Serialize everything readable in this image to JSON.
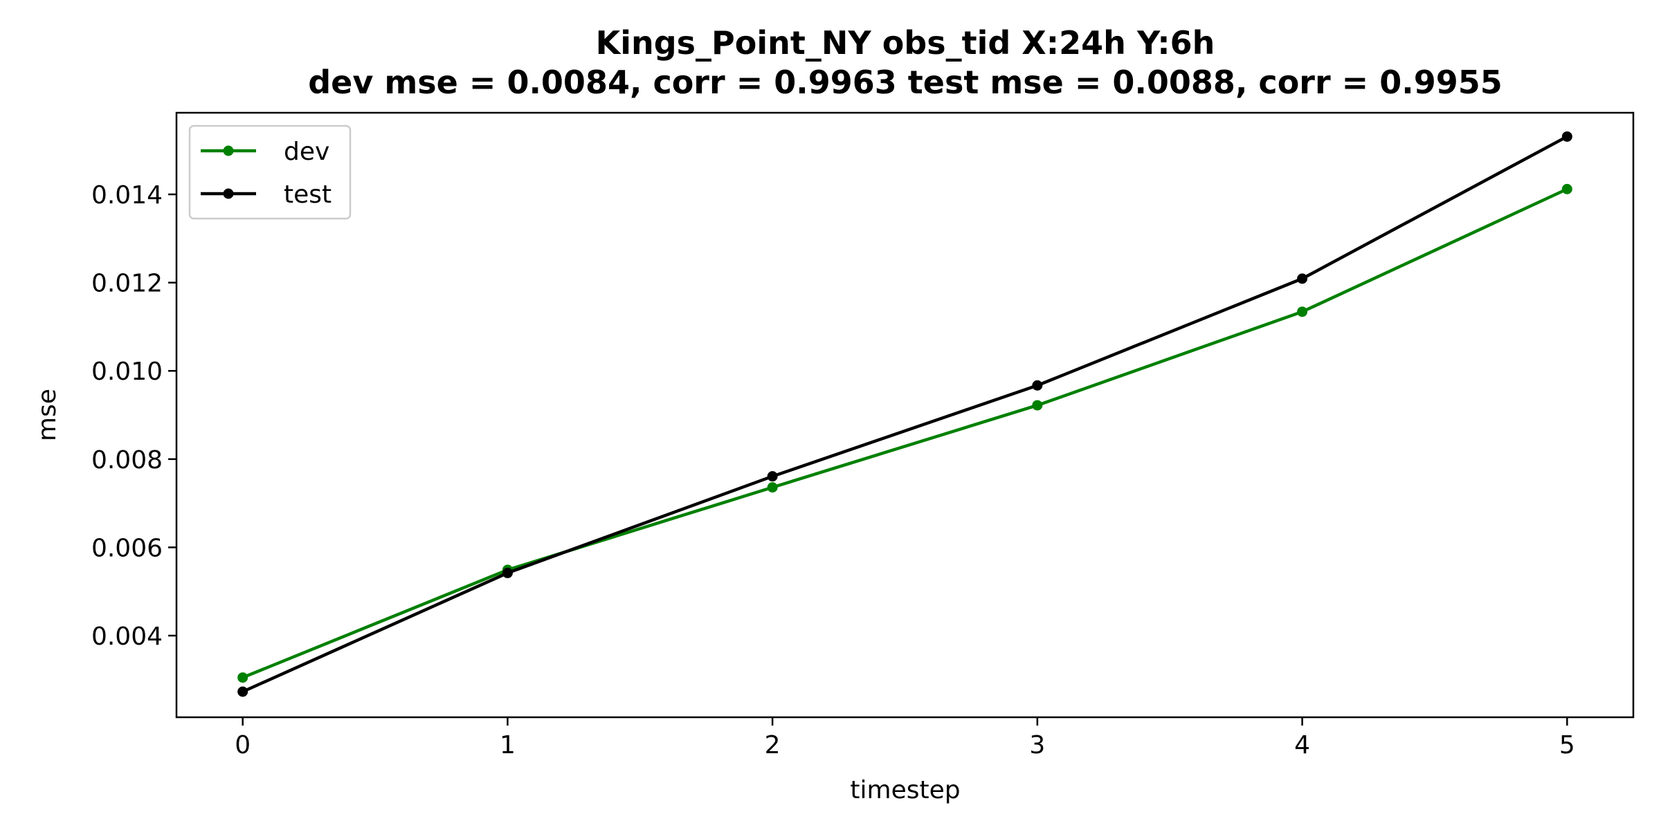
{
  "chart_data": {
    "type": "line",
    "title": "Kings_Point_NY   obs_tid   X:24h   Y:6h",
    "subtitle": "dev mse = 0.0084, corr = 0.9963   test mse = 0.0088, corr = 0.9955",
    "xlabel": "timestep",
    "ylabel": "mse",
    "x": [
      0,
      1,
      2,
      3,
      4,
      5
    ],
    "x_ticks": [
      "0",
      "1",
      "2",
      "3",
      "4",
      "5"
    ],
    "y_ticks": [
      "0.004",
      "0.006",
      "0.008",
      "0.010",
      "0.012",
      "0.014"
    ],
    "y_tick_values": [
      0.004,
      0.006,
      0.008,
      0.01,
      0.012,
      0.014
    ],
    "xlim": [
      -0.25,
      5.25
    ],
    "ylim": [
      0.00215,
      0.01585
    ],
    "grid": false,
    "legend_position": "upper-left",
    "series": [
      {
        "name": "dev",
        "color": "#008000",
        "values": [
          0.00305,
          0.00549,
          0.00736,
          0.00922,
          0.01134,
          0.01412
        ]
      },
      {
        "name": "test",
        "color": "#000000",
        "values": [
          0.00273,
          0.00542,
          0.00761,
          0.00967,
          0.01209,
          0.01531
        ]
      }
    ]
  }
}
